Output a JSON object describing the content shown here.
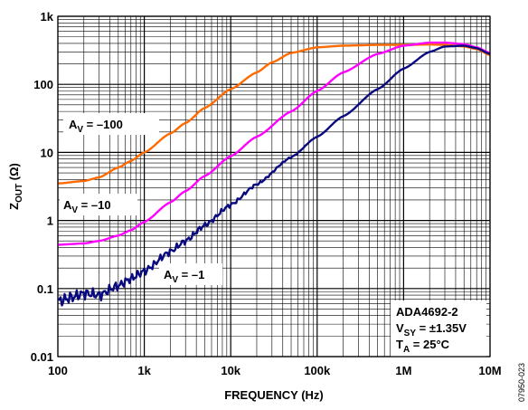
{
  "chart_data": {
    "type": "line",
    "xlabel": "FREQUENCY (Hz)",
    "ylabel": {
      "main": "Z",
      "sub": "OUT",
      "unit": " (Ω)"
    },
    "x_scale": "log",
    "y_scale": "log",
    "xlim": [
      100,
      10000000
    ],
    "ylim": [
      0.01,
      1000
    ],
    "grid": true,
    "x_ticks": [
      {
        "value": 100,
        "label": "100"
      },
      {
        "value": 1000,
        "label": "1k"
      },
      {
        "value": 10000,
        "label": "10k"
      },
      {
        "value": 100000,
        "label": "100k"
      },
      {
        "value": 1000000,
        "label": "1M"
      },
      {
        "value": 10000000,
        "label": "10M"
      }
    ],
    "y_ticks": [
      {
        "value": 0.01,
        "label": "0.01"
      },
      {
        "value": 0.1,
        "label": "0.1"
      },
      {
        "value": 1,
        "label": "1"
      },
      {
        "value": 10,
        "label": "10"
      },
      {
        "value": 100,
        "label": "100"
      },
      {
        "value": 1000,
        "label": "1k"
      }
    ],
    "series": [
      {
        "label": {
          "pre": "A",
          "sub": "V",
          "post": " = –100"
        },
        "color": "#ff6a00",
        "x": [
          100,
          200,
          300,
          500,
          700,
          1000,
          2000,
          3000,
          5000,
          10000,
          20000,
          30000,
          50000,
          100000,
          200000,
          500000,
          1000000,
          2000000,
          3000000,
          5000000,
          7000000,
          10000000
        ],
        "y": [
          3.5,
          3.8,
          4.3,
          6,
          7.5,
          10,
          19,
          27,
          45,
          85,
          150,
          210,
          290,
          350,
          370,
          380,
          380,
          385,
          380,
          360,
          330,
          270
        ]
      },
      {
        "label": {
          "pre": "A",
          "sub": "V",
          "post": " = –10"
        },
        "color": "#ff00ff",
        "x": [
          100,
          200,
          300,
          500,
          700,
          1000,
          2000,
          3000,
          5000,
          10000,
          20000,
          50000,
          100000,
          200000,
          500000,
          1000000,
          2000000,
          3000000,
          5000000,
          7000000,
          10000000
        ],
        "y": [
          0.44,
          0.46,
          0.5,
          0.6,
          0.72,
          0.95,
          1.85,
          2.7,
          4.5,
          8.8,
          17,
          40,
          80,
          150,
          280,
          370,
          410,
          410,
          390,
          350,
          290
        ]
      },
      {
        "label": {
          "pre": "A",
          "sub": "V",
          "post": " = –1"
        },
        "color": "#0a0a80",
        "x": [
          100,
          150,
          200,
          300,
          500,
          700,
          1000,
          2000,
          3000,
          5000,
          10000,
          20000,
          50000,
          100000,
          200000,
          500000,
          1000000,
          2000000,
          3000000,
          5000000,
          7000000,
          10000000
        ],
        "y": [
          0.065,
          0.075,
          0.085,
          0.08,
          0.11,
          0.14,
          0.18,
          0.35,
          0.5,
          0.85,
          1.7,
          3.4,
          8.5,
          17,
          34,
          85,
          170,
          300,
          360,
          370,
          340,
          280
        ]
      }
    ],
    "annotations": {
      "label_av100": {
        "pre": "A",
        "sub": "V",
        "post": " = –100"
      },
      "label_av10": {
        "pre": "A",
        "sub": "V",
        "post": " = –10"
      },
      "label_av1": {
        "pre": "A",
        "sub": "V",
        "post": " = –1"
      },
      "info_line1": "ADA4692-2",
      "info_line2": {
        "pre": "V",
        "sub": "SY",
        "post": " = ±1.35V"
      },
      "info_line3": {
        "pre": "T",
        "sub": "A",
        "post": " = 25°C"
      }
    },
    "side_code": "07950-023"
  }
}
